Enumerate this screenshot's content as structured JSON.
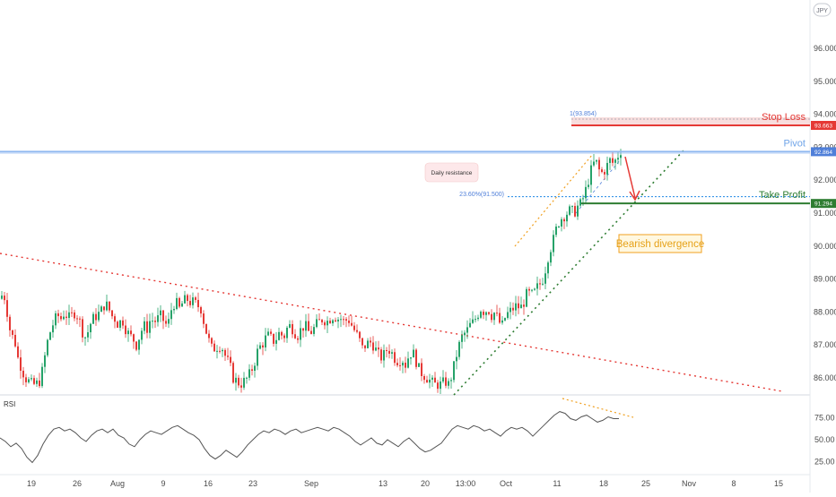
{
  "symbol": "JPY",
  "colors": {
    "candle_up": "#26a269",
    "candle_down": "#e53935",
    "resistance": "#90b8f0",
    "pivot_text": "#6fa4e8",
    "stop_loss": "#e53935",
    "take_profit": "#2e7d32",
    "take_profit_dotted": "#1e88e5",
    "downtrend": "#e53935",
    "uptrend_green": "#2e7d32",
    "uptrend_orange": "#f0a020",
    "rsi_line": "#555555",
    "rsi_div": "#f0a020",
    "axis_text": "#4a4a4a",
    "grid_sep": "#e0e3eb"
  },
  "chart_data": [
    {
      "type": "candlestick",
      "symbol": "JPY",
      "ylim": [
        85.6,
        97.3
      ],
      "y_ticks": [
        "96.000",
        "95.000",
        "94.000",
        "93.000",
        "92.000",
        "91.000",
        "90.000",
        "89.000",
        "88.000",
        "87.000",
        "86.000"
      ],
      "x_ticks": [
        "19",
        "26",
        "Aug",
        "9",
        "16",
        "23",
        "Sep",
        "13",
        "20",
        "13:00",
        "Oct",
        "11",
        "18",
        "25",
        "Nov",
        "8",
        "15"
      ],
      "levels": [
        {
          "name": "Stop Loss",
          "value": 93.663,
          "label": "93.663"
        },
        {
          "name": "Pivot",
          "value": 92.864,
          "label": "92.864"
        },
        {
          "name": "Take Profit",
          "value": 91.294,
          "label": "91.294"
        }
      ],
      "fib_labels": {
        "top": "1(93.854)",
        "level": "23.60%(91.500)"
      },
      "annotations": {
        "daily_resistance": "Daily resistance",
        "bearish_divergence": "Bearish divergence"
      },
      "price_path": [
        [
          0,
          88.4
        ],
        [
          4,
          88.6
        ],
        [
          8,
          88.0
        ],
        [
          12,
          87.3
        ],
        [
          16,
          87.2
        ],
        [
          20,
          86.6
        ],
        [
          24,
          86.3
        ],
        [
          28,
          86.0
        ],
        [
          32,
          85.9
        ],
        [
          36,
          85.8
        ],
        [
          40,
          85.8
        ],
        [
          44,
          85.9
        ],
        [
          48,
          86.3
        ],
        [
          52,
          87.0
        ],
        [
          56,
          87.4
        ],
        [
          60,
          87.7
        ],
        [
          64,
          87.9
        ],
        [
          68,
          87.8
        ],
        [
          72,
          88.0
        ],
        [
          76,
          87.8
        ],
        [
          80,
          87.9
        ],
        [
          84,
          88.0
        ],
        [
          88,
          87.8
        ],
        [
          92,
          87.4
        ],
        [
          96,
          87.2
        ],
        [
          100,
          87.6
        ],
        [
          104,
          87.8
        ],
        [
          108,
          87.9
        ],
        [
          112,
          88.0
        ],
        [
          116,
          88.2
        ],
        [
          120,
          88.2
        ],
        [
          124,
          87.9
        ],
        [
          128,
          87.8
        ],
        [
          132,
          87.6
        ],
        [
          136,
          87.8
        ],
        [
          140,
          87.5
        ],
        [
          144,
          87.3
        ],
        [
          148,
          87.2
        ],
        [
          152,
          87.0
        ],
        [
          156,
          87.3
        ],
        [
          160,
          87.6
        ],
        [
          164,
          87.5
        ],
        [
          168,
          87.8
        ],
        [
          172,
          87.7
        ],
        [
          176,
          87.8
        ],
        [
          180,
          87.9
        ],
        [
          184,
          87.6
        ],
        [
          188,
          87.7
        ],
        [
          192,
          88.2
        ],
        [
          196,
          88.3
        ],
        [
          200,
          88.1
        ],
        [
          204,
          88.3
        ],
        [
          208,
          88.4
        ],
        [
          212,
          88.3
        ],
        [
          216,
          88.3
        ],
        [
          220,
          88.2
        ],
        [
          224,
          88.1
        ],
        [
          228,
          87.6
        ],
        [
          232,
          87.2
        ],
        [
          236,
          86.9
        ],
        [
          240,
          86.9
        ],
        [
          244,
          87.0
        ],
        [
          248,
          86.9
        ],
        [
          252,
          86.6
        ],
        [
          256,
          86.4
        ],
        [
          260,
          86.0
        ],
        [
          264,
          85.9
        ],
        [
          268,
          85.8
        ],
        [
          272,
          85.9
        ],
        [
          276,
          86.0
        ],
        [
          280,
          86.2
        ],
        [
          284,
          86.5
        ],
        [
          288,
          86.9
        ],
        [
          292,
          87.0
        ],
        [
          296,
          87.2
        ],
        [
          300,
          87.3
        ],
        [
          304,
          87.1
        ],
        [
          308,
          87.2
        ],
        [
          312,
          87.4
        ],
        [
          316,
          87.2
        ],
        [
          320,
          87.5
        ],
        [
          324,
          87.6
        ],
        [
          328,
          87.4
        ],
        [
          332,
          87.3
        ],
        [
          336,
          87.5
        ],
        [
          340,
          87.6
        ],
        [
          344,
          87.4
        ],
        [
          348,
          87.4
        ],
        [
          352,
          87.6
        ],
        [
          356,
          87.7
        ],
        [
          360,
          87.8
        ],
        [
          364,
          87.7
        ],
        [
          368,
          87.8
        ],
        [
          372,
          87.9
        ],
        [
          376,
          87.8
        ],
        [
          380,
          87.8
        ],
        [
          384,
          87.7
        ],
        [
          388,
          87.8
        ],
        [
          392,
          87.6
        ],
        [
          396,
          87.4
        ],
        [
          400,
          87.2
        ],
        [
          404,
          86.9
        ],
        [
          408,
          87.0
        ],
        [
          412,
          87.1
        ],
        [
          416,
          87.0
        ],
        [
          420,
          86.8
        ],
        [
          424,
          86.6
        ],
        [
          428,
          86.7
        ],
        [
          432,
          86.9
        ],
        [
          436,
          86.8
        ],
        [
          440,
          86.6
        ],
        [
          444,
          86.5
        ],
        [
          448,
          86.6
        ],
        [
          452,
          86.4
        ],
        [
          456,
          86.7
        ],
        [
          460,
          86.8
        ],
        [
          464,
          86.5
        ],
        [
          468,
          86.2
        ],
        [
          472,
          86.1
        ],
        [
          476,
          86.0
        ],
        [
          480,
          85.9
        ],
        [
          484,
          85.8
        ],
        [
          488,
          85.8
        ],
        [
          492,
          85.8
        ],
        [
          496,
          85.9
        ],
        [
          500,
          85.8
        ],
        [
          504,
          86.1
        ],
        [
          508,
          86.6
        ],
        [
          512,
          87.0
        ],
        [
          516,
          87.3
        ],
        [
          520,
          87.4
        ],
        [
          524,
          87.6
        ],
        [
          528,
          87.7
        ],
        [
          532,
          87.9
        ],
        [
          536,
          88.1
        ],
        [
          540,
          88.0
        ],
        [
          544,
          88.1
        ],
        [
          548,
          87.9
        ],
        [
          552,
          88.0
        ],
        [
          556,
          87.7
        ],
        [
          560,
          87.6
        ],
        [
          564,
          87.9
        ],
        [
          568,
          88.0
        ],
        [
          572,
          88.1
        ],
        [
          576,
          88.2
        ],
        [
          580,
          88.1
        ],
        [
          584,
          88.3
        ],
        [
          588,
          88.6
        ],
        [
          592,
          88.5
        ],
        [
          596,
          88.6
        ],
        [
          600,
          88.8
        ],
        [
          604,
          88.9
        ],
        [
          608,
          89.3
        ],
        [
          612,
          89.8
        ],
        [
          616,
          90.1
        ],
        [
          620,
          90.5
        ],
        [
          624,
          90.8
        ],
        [
          628,
          90.9
        ],
        [
          632,
          91.0
        ],
        [
          636,
          91.1
        ],
        [
          640,
          91.0
        ],
        [
          644,
          91.2
        ],
        [
          648,
          91.3
        ],
        [
          652,
          91.6
        ],
        [
          656,
          92.0
        ],
        [
          660,
          92.4
        ],
        [
          664,
          92.6
        ],
        [
          668,
          92.3
        ],
        [
          672,
          92.2
        ],
        [
          676,
          92.4
        ],
        [
          680,
          92.6
        ],
        [
          684,
          92.5
        ],
        [
          688,
          92.7
        ],
        [
          692,
          92.9
        ]
      ]
    },
    {
      "type": "line",
      "name": "RSI",
      "ylim": [
        15,
        90
      ],
      "y_ticks": [
        "75.00",
        "50.00",
        "25.00"
      ],
      "values": [
        [
          0,
          52
        ],
        [
          6,
          48
        ],
        [
          12,
          42
        ],
        [
          18,
          46
        ],
        [
          24,
          40
        ],
        [
          30,
          30
        ],
        [
          36,
          24
        ],
        [
          42,
          32
        ],
        [
          48,
          45
        ],
        [
          54,
          55
        ],
        [
          60,
          62
        ],
        [
          66,
          64
        ],
        [
          72,
          60
        ],
        [
          78,
          62
        ],
        [
          84,
          58
        ],
        [
          90,
          52
        ],
        [
          96,
          48
        ],
        [
          102,
          55
        ],
        [
          108,
          60
        ],
        [
          114,
          62
        ],
        [
          120,
          58
        ],
        [
          126,
          62
        ],
        [
          132,
          55
        ],
        [
          138,
          52
        ],
        [
          144,
          45
        ],
        [
          150,
          42
        ],
        [
          156,
          50
        ],
        [
          162,
          56
        ],
        [
          168,
          60
        ],
        [
          174,
          58
        ],
        [
          180,
          56
        ],
        [
          186,
          60
        ],
        [
          192,
          64
        ],
        [
          198,
          66
        ],
        [
          204,
          62
        ],
        [
          210,
          58
        ],
        [
          216,
          55
        ],
        [
          222,
          50
        ],
        [
          228,
          40
        ],
        [
          234,
          32
        ],
        [
          240,
          28
        ],
        [
          246,
          32
        ],
        [
          252,
          38
        ],
        [
          258,
          34
        ],
        [
          264,
          30
        ],
        [
          270,
          36
        ],
        [
          276,
          44
        ],
        [
          282,
          50
        ],
        [
          288,
          56
        ],
        [
          294,
          60
        ],
        [
          300,
          58
        ],
        [
          306,
          62
        ],
        [
          312,
          60
        ],
        [
          318,
          56
        ],
        [
          324,
          60
        ],
        [
          330,
          62
        ],
        [
          336,
          58
        ],
        [
          342,
          60
        ],
        [
          348,
          62
        ],
        [
          354,
          64
        ],
        [
          360,
          62
        ],
        [
          366,
          60
        ],
        [
          372,
          64
        ],
        [
          378,
          62
        ],
        [
          384,
          58
        ],
        [
          390,
          54
        ],
        [
          396,
          48
        ],
        [
          402,
          44
        ],
        [
          408,
          48
        ],
        [
          414,
          52
        ],
        [
          420,
          46
        ],
        [
          426,
          44
        ],
        [
          432,
          50
        ],
        [
          438,
          46
        ],
        [
          444,
          42
        ],
        [
          450,
          48
        ],
        [
          456,
          52
        ],
        [
          462,
          46
        ],
        [
          468,
          40
        ],
        [
          474,
          36
        ],
        [
          480,
          38
        ],
        [
          486,
          42
        ],
        [
          492,
          46
        ],
        [
          498,
          54
        ],
        [
          504,
          62
        ],
        [
          510,
          66
        ],
        [
          516,
          64
        ],
        [
          522,
          62
        ],
        [
          528,
          66
        ],
        [
          534,
          64
        ],
        [
          540,
          60
        ],
        [
          546,
          62
        ],
        [
          552,
          58
        ],
        [
          558,
          54
        ],
        [
          564,
          60
        ],
        [
          570,
          64
        ],
        [
          576,
          62
        ],
        [
          582,
          64
        ],
        [
          588,
          60
        ],
        [
          594,
          54
        ],
        [
          600,
          60
        ],
        [
          606,
          66
        ],
        [
          612,
          72
        ],
        [
          618,
          78
        ],
        [
          624,
          82
        ],
        [
          630,
          80
        ],
        [
          636,
          74
        ],
        [
          642,
          72
        ],
        [
          648,
          76
        ],
        [
          654,
          78
        ],
        [
          660,
          74
        ],
        [
          666,
          70
        ],
        [
          672,
          72
        ],
        [
          678,
          76
        ],
        [
          684,
          74
        ],
        [
          690,
          74
        ]
      ]
    }
  ]
}
